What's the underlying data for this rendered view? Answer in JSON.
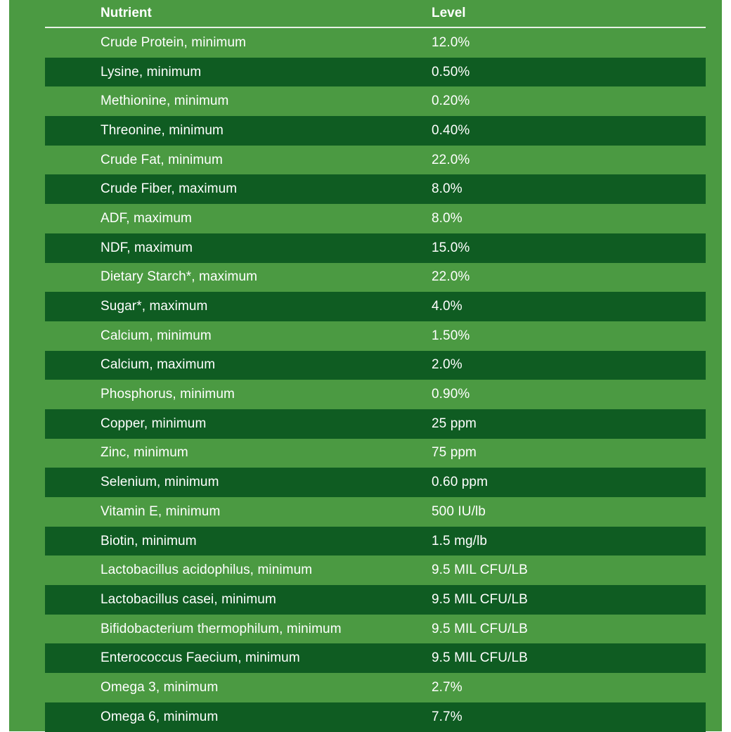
{
  "table": {
    "headers": {
      "nutrient": "Nutrient",
      "level": "Level"
    },
    "rows": [
      {
        "nutrient": "Crude Protein, minimum",
        "level": "12.0%"
      },
      {
        "nutrient": "Lysine, minimum",
        "level": "0.50%"
      },
      {
        "nutrient": "Methionine, minimum",
        "level": "0.20%"
      },
      {
        "nutrient": "Threonine, minimum",
        "level": "0.40%"
      },
      {
        "nutrient": "Crude Fat, minimum",
        "level": "22.0%"
      },
      {
        "nutrient": "Crude Fiber, maximum",
        "level": "8.0%"
      },
      {
        "nutrient": "ADF, maximum",
        "level": "8.0%"
      },
      {
        "nutrient": "NDF, maximum",
        "level": "15.0%"
      },
      {
        "nutrient": "Dietary Starch*, maximum",
        "level": "22.0%"
      },
      {
        "nutrient": "Sugar*, maximum",
        "level": "4.0%"
      },
      {
        "nutrient": "Calcium, minimum",
        "level": "1.50%"
      },
      {
        "nutrient": "Calcium, maximum",
        "level": "2.0%"
      },
      {
        "nutrient": "Phosphorus, minimum",
        "level": "0.90%"
      },
      {
        "nutrient": "Copper, minimum",
        "level": "25 ppm"
      },
      {
        "nutrient": "Zinc, minimum",
        "level": "75 ppm"
      },
      {
        "nutrient": "Selenium, minimum",
        "level": "0.60 ppm"
      },
      {
        "nutrient": "Vitamin E, minimum",
        "level": "500 IU/lb"
      },
      {
        "nutrient": "Biotin, minimum",
        "level": "1.5 mg/lb"
      },
      {
        "nutrient": "Lactobacillus acidophilus, minimum",
        "level": "9.5 MIL CFU/LB"
      },
      {
        "nutrient": "Lactobacillus casei, minimum",
        "level": "9.5 MIL CFU/LB"
      },
      {
        "nutrient": "Bifidobacterium thermophilum, minimum",
        "level": "9.5 MIL CFU/LB"
      },
      {
        "nutrient": "Enterococcus Faecium, minimum",
        "level": "9.5 MIL CFU/LB"
      },
      {
        "nutrient": "Omega 3, minimum",
        "level": "2.7%"
      },
      {
        "nutrient": "Omega 6, minimum",
        "level": "7.7%"
      }
    ]
  },
  "colors": {
    "panel": "#4b9a42",
    "stripe": "#0f5c22",
    "text": "#ffffff"
  }
}
